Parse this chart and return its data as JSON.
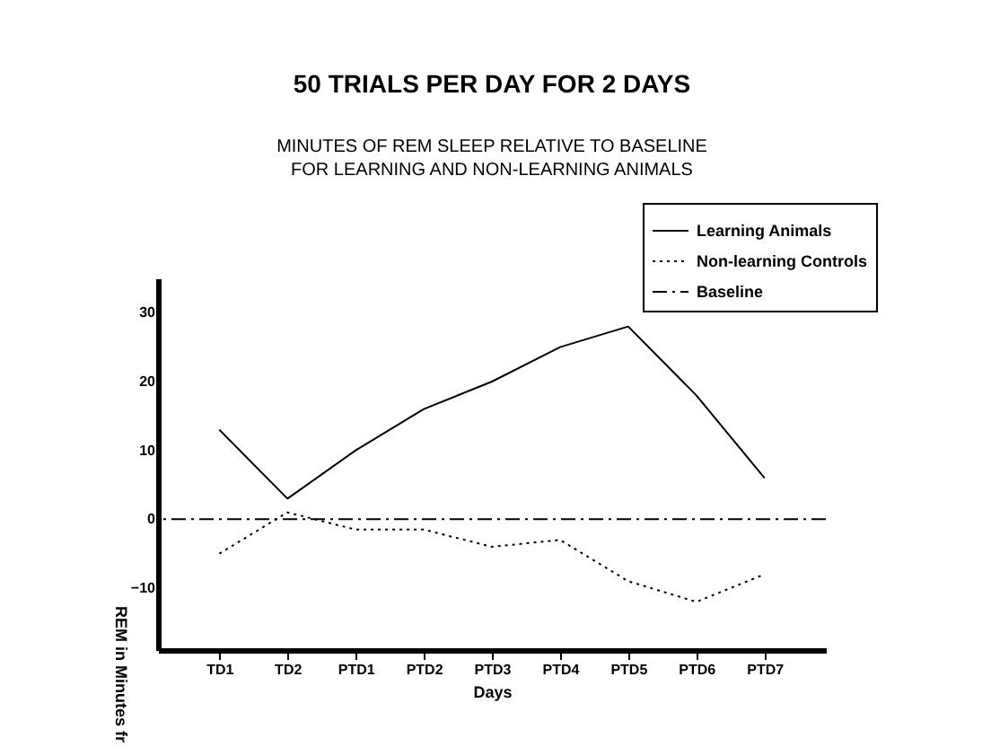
{
  "chart_data": {
    "type": "line",
    "title": "50 TRIALS PER DAY FOR 2 DAYS",
    "subtitle": "MINUTES OF REM SLEEP RELATIVE TO BASELINE\nFOR LEARNING AND NON-LEARNING ANIMALS",
    "xlabel": "Days",
    "ylabel": "REM in Minutes fr",
    "categories": [
      "TD1",
      "TD2",
      "PTD1",
      "PTD2",
      "PTD3",
      "PTD4",
      "PTD5",
      "PTD6",
      "PTD7"
    ],
    "series": [
      {
        "name": "Learning Animals",
        "color": "#000000",
        "line_style": "solid",
        "values": [
          13,
          3,
          10,
          16,
          20,
          25,
          28,
          18,
          6
        ]
      },
      {
        "name": "Non-learning Controls",
        "color": "#000000",
        "line_style": "dotted",
        "values": [
          -5,
          1,
          -1.5,
          -1.5,
          -4,
          -3,
          -9,
          -12,
          -8
        ]
      }
    ],
    "ref_lines": [
      {
        "axis": "y",
        "value": 0,
        "label": "Baseline",
        "color": "#000000",
        "line_style": "dashdot"
      }
    ],
    "ylim": [
      -19,
      35
    ],
    "yticks": [
      -10,
      0,
      10,
      20,
      30
    ],
    "grid": false,
    "legend": "top right",
    "marker": "none"
  }
}
